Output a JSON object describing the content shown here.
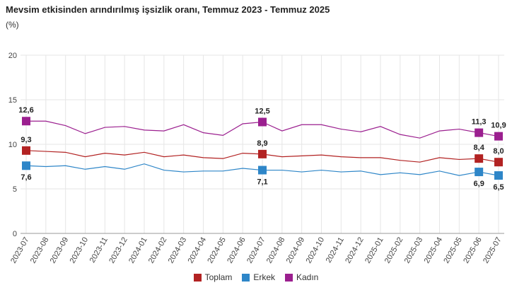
{
  "chart_data": {
    "type": "line",
    "title": "Mevsim etkisinden arındırılmış işsizlik oranı, Temmuz 2023 - Temmuz 2025",
    "ylabel": "(%)",
    "xlabel": "",
    "ylim": [
      0,
      20
    ],
    "yticks": [
      "0",
      "5",
      "10",
      "15",
      "20"
    ],
    "grid": true,
    "legend": "bottom",
    "categories": [
      "2023-07",
      "2023-08",
      "2023-09",
      "2023-10",
      "2023-11",
      "2023-12",
      "2024-01",
      "2024-02",
      "2024-03",
      "2024-04",
      "2024-05",
      "2024-06",
      "2024-07",
      "2024-08",
      "2024-09",
      "2024-10",
      "2024-11",
      "2024-12",
      "2025-01",
      "2025-02",
      "2025-03",
      "2025-04",
      "2025-05",
      "2025-06",
      "2025-07"
    ],
    "series": [
      {
        "name": "Toplam",
        "color": "#b22222",
        "values": [
          9.3,
          9.2,
          9.1,
          8.6,
          9.0,
          8.8,
          9.1,
          8.6,
          8.8,
          8.5,
          8.4,
          9.0,
          8.9,
          8.6,
          8.7,
          8.8,
          8.6,
          8.5,
          8.5,
          8.2,
          8.0,
          8.5,
          8.3,
          8.4,
          8.0
        ],
        "labels": {
          "0": "9,3",
          "12": "8,9",
          "23": "8,4",
          "24": "8,0"
        }
      },
      {
        "name": "Erkek",
        "color": "#2e86c8",
        "values": [
          7.6,
          7.5,
          7.6,
          7.2,
          7.5,
          7.2,
          7.8,
          7.1,
          6.9,
          7.0,
          7.0,
          7.3,
          7.1,
          7.1,
          6.9,
          7.1,
          6.9,
          7.0,
          6.6,
          6.8,
          6.6,
          7.0,
          6.5,
          6.9,
          6.5
        ],
        "labels": {
          "0": "7,6",
          "12": "7,1",
          "23": "6,9",
          "24": "6,5"
        }
      },
      {
        "name": "Kadın",
        "color": "#9b1f8f",
        "values": [
          12.6,
          12.6,
          12.1,
          11.2,
          11.9,
          12.0,
          11.6,
          11.5,
          12.2,
          11.3,
          11.0,
          12.3,
          12.5,
          11.5,
          12.2,
          12.2,
          11.7,
          11.4,
          12.0,
          11.1,
          10.7,
          11.5,
          11.7,
          11.3,
          10.9
        ],
        "labels": {
          "0": "12,6",
          "12": "12,5",
          "23": "11,3",
          "24": "10,9"
        }
      }
    ]
  }
}
